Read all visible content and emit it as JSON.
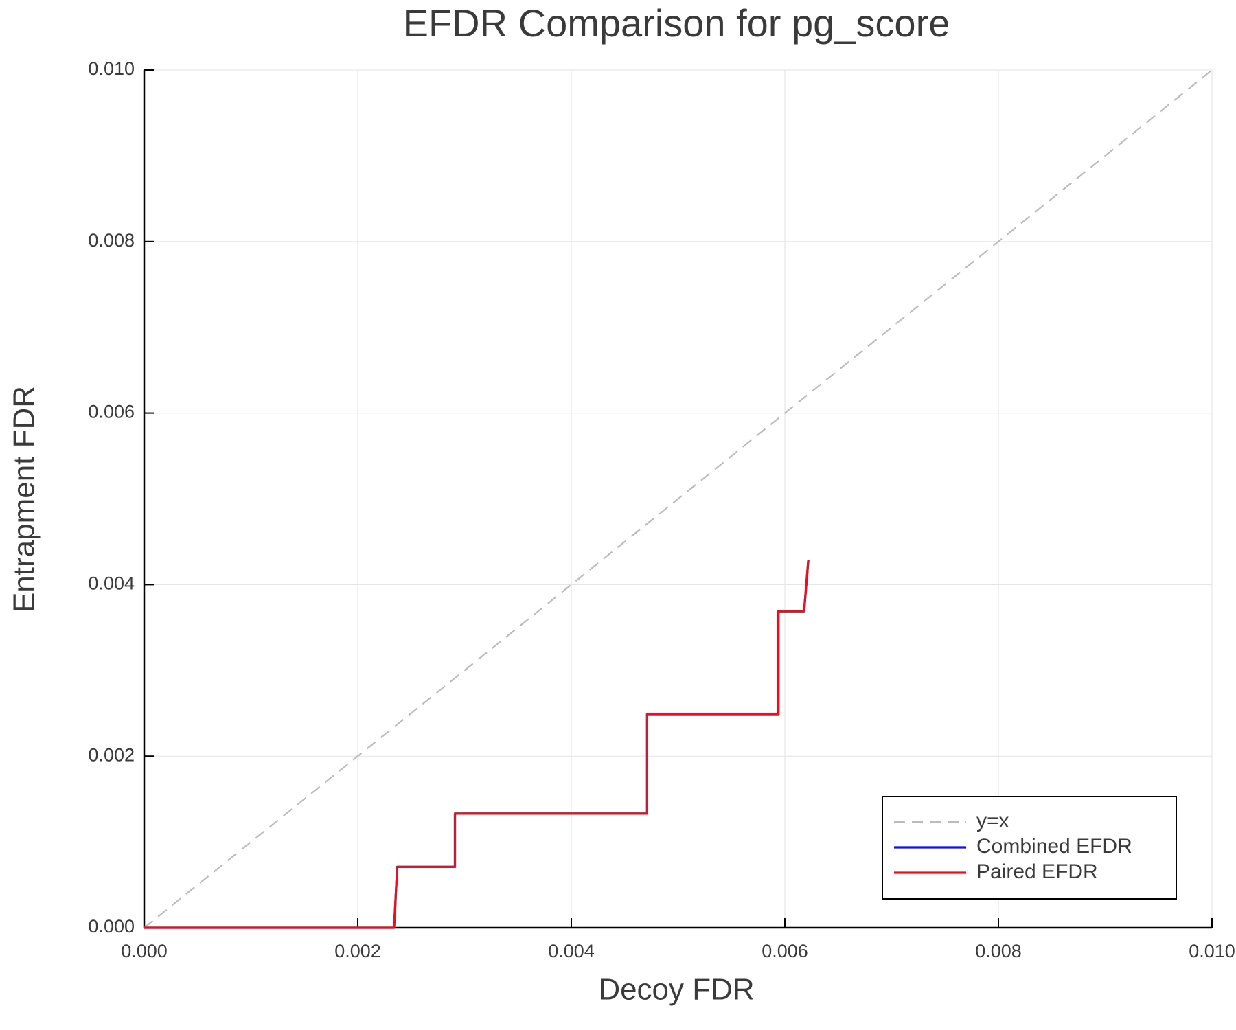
{
  "chart_data": {
    "type": "line",
    "title": "EFDR Comparison for pg_score",
    "x_label": "Decoy FDR",
    "y_label": "Entrapment FDR",
    "xlim": [
      0,
      0.01
    ],
    "ylim": [
      0,
      0.01
    ],
    "xticks": [
      {
        "value": 0,
        "label": "0.000"
      },
      0.002,
      0.004,
      0.006,
      0.008,
      {
        "value": 0.01,
        "label": "0.010"
      }
    ],
    "yticks": [
      {
        "value": 0,
        "label": "0.000"
      },
      0.002,
      0.004,
      0.006,
      0.008,
      {
        "value": 0.01,
        "label": "0.010"
      }
    ],
    "grid": true,
    "legend": "lower right",
    "series": [
      {
        "name": "y=x",
        "color": "#bbbbbb",
        "dashed": true,
        "x": [
          0,
          0.01
        ],
        "values": [
          0,
          0.01
        ]
      },
      {
        "name": "Combined EFDR",
        "color": "#1010e0",
        "dashed": false,
        "x": [
          0,
          0.00234,
          0.00237,
          0.00291,
          0.00291,
          0.00471,
          0.00471,
          0.00594,
          0.00594,
          0.00618,
          0.00622
        ],
        "values": [
          0,
          0,
          0.00071,
          0.00071,
          0.00133,
          0.00133,
          0.00249,
          0.00249,
          0.00369,
          0.00369,
          0.00429
        ]
      },
      {
        "name": "Paired EFDR",
        "color": "#e8101c",
        "dashed": false,
        "x": [
          0,
          0.00234,
          0.00237,
          0.00291,
          0.00291,
          0.00471,
          0.00471,
          0.00594,
          0.00594,
          0.00618,
          0.00622
        ],
        "values": [
          0,
          0,
          0.00071,
          0.00071,
          0.00133,
          0.00133,
          0.00249,
          0.00249,
          0.00369,
          0.00369,
          0.00429
        ]
      }
    ]
  }
}
